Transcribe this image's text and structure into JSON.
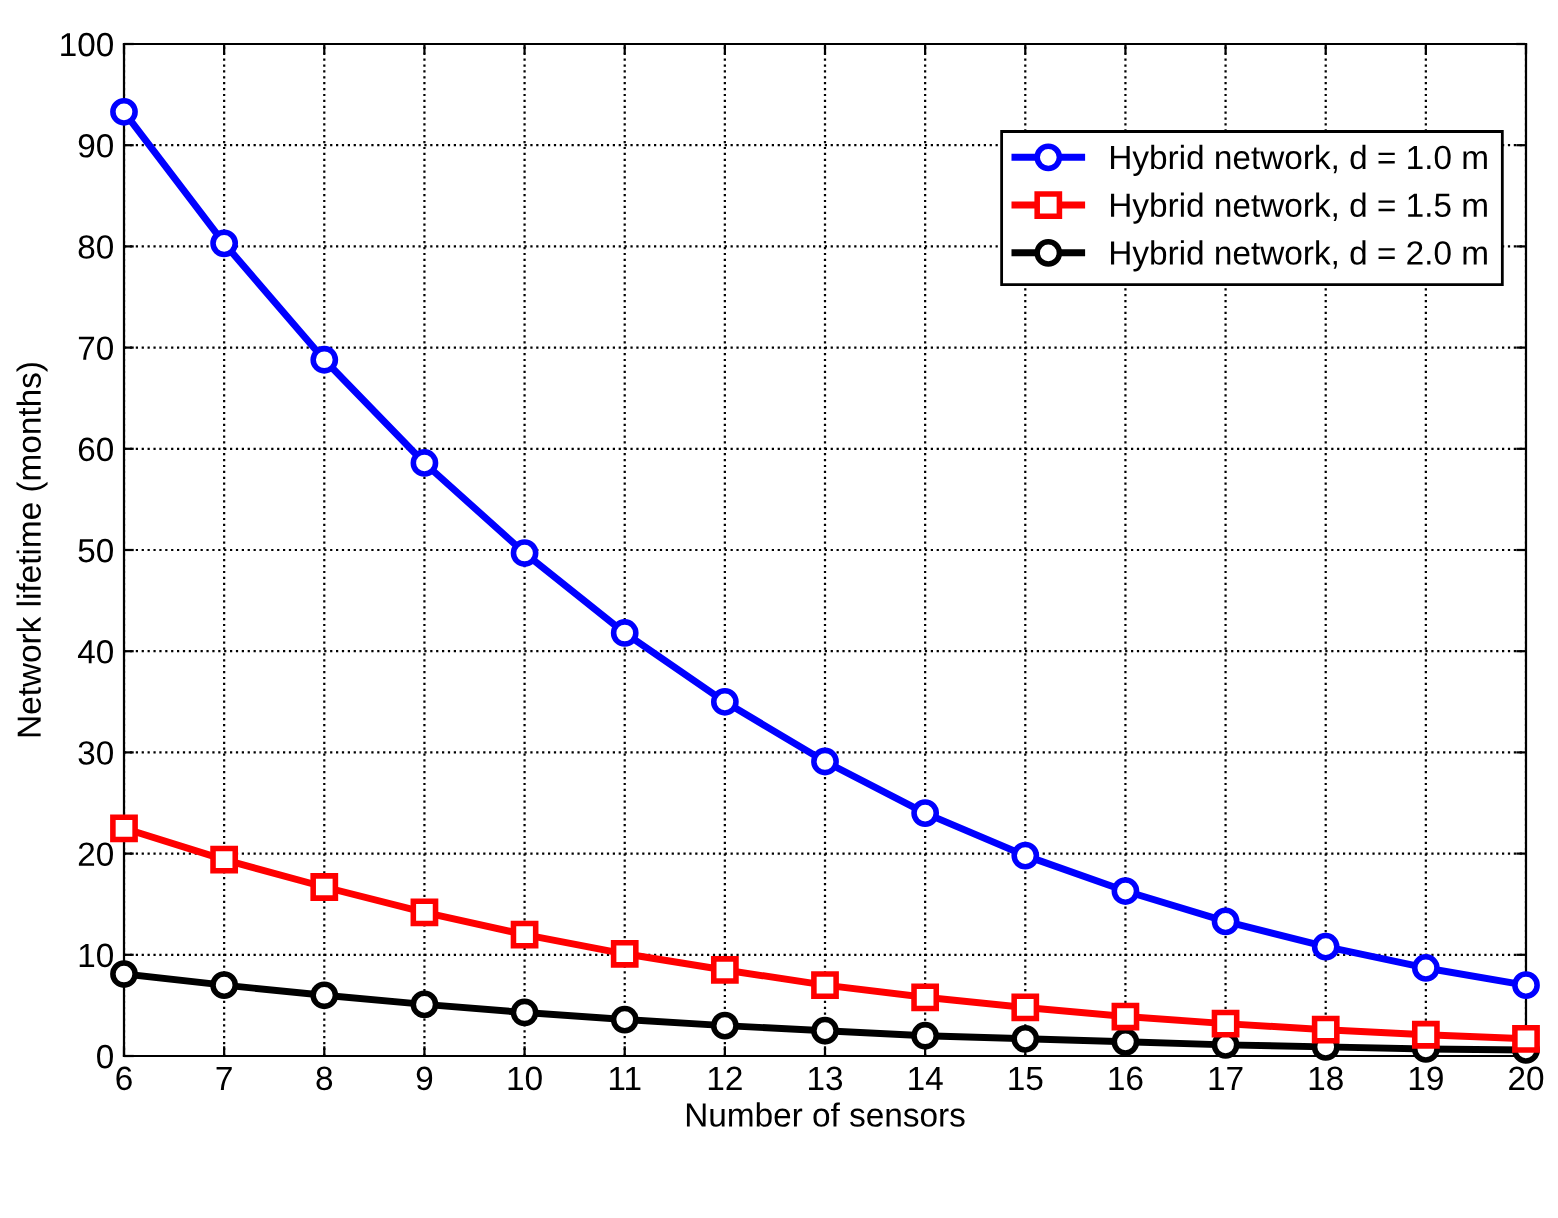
{
  "chart_data": {
    "type": "line",
    "xlabel": "Number of sensors",
    "ylabel": "Network lifetime (months)",
    "x": [
      6,
      7,
      8,
      9,
      10,
      11,
      12,
      13,
      14,
      15,
      16,
      17,
      18,
      19,
      20
    ],
    "series": [
      {
        "name": "Hybrid network, d = 1.0 m",
        "color": "#0000ff",
        "marker": "circle",
        "values": [
          93.3,
          80.3,
          68.8,
          58.6,
          49.7,
          41.8,
          35.0,
          29.1,
          24.0,
          19.8,
          16.3,
          13.3,
          10.8,
          8.7,
          7.0
        ]
      },
      {
        "name": "Hybrid network, d = 1.5 m",
        "color": "#ff0000",
        "marker": "square",
        "values": [
          22.5,
          19.4,
          16.7,
          14.2,
          12.0,
          10.1,
          8.5,
          7.0,
          5.8,
          4.8,
          3.9,
          3.2,
          2.6,
          2.1,
          1.7
        ]
      },
      {
        "name": "Hybrid network, d = 2.0 m",
        "color": "#000000",
        "marker": "circle",
        "values": [
          8.1,
          7.0,
          6.0,
          5.1,
          4.3,
          3.6,
          3.0,
          2.5,
          2.0,
          1.7,
          1.4,
          1.1,
          0.9,
          0.7,
          0.6
        ]
      }
    ],
    "xlim": [
      6,
      20
    ],
    "xticks": [
      6,
      7,
      8,
      9,
      10,
      11,
      12,
      13,
      14,
      15,
      16,
      17,
      18,
      19,
      20
    ],
    "ylim": [
      0,
      100
    ],
    "yticks": [
      0,
      10,
      20,
      30,
      40,
      50,
      60,
      70,
      80,
      90,
      100
    ],
    "grid": true,
    "legend": "top right",
    "line_style": "solid"
  }
}
